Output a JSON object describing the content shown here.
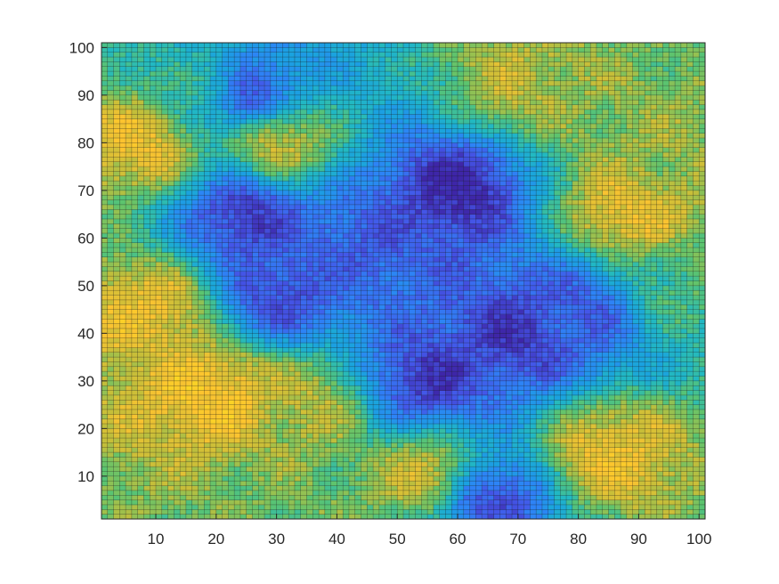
{
  "chart_data": {
    "type": "heatmap",
    "title": "",
    "xlabel": "",
    "ylabel": "",
    "xlim": [
      1,
      101
    ],
    "ylim": [
      1,
      101
    ],
    "grid_size": [
      100,
      100
    ],
    "x_ticks": [
      10,
      20,
      30,
      40,
      50,
      60,
      70,
      80,
      90,
      100
    ],
    "y_ticks": [
      10,
      20,
      30,
      40,
      50,
      60,
      70,
      80,
      90,
      100
    ],
    "colormap": [
      "#3e26a8",
      "#4456e8",
      "#2d84f6",
      "#1aa2e0",
      "#22b9c1",
      "#5cc46f",
      "#c3be3a",
      "#fcc330",
      "#f9e01f"
    ],
    "value_range": [
      0,
      1
    ],
    "grid_lines": true,
    "features": [
      {
        "x": 8,
        "y": 80,
        "v": 0.85
      },
      {
        "x": 30,
        "y": 80,
        "v": 0.8
      },
      {
        "x": 18,
        "y": 92,
        "v": 0.55
      },
      {
        "x": 10,
        "y": 45,
        "v": 0.85
      },
      {
        "x": 20,
        "y": 28,
        "v": 0.9
      },
      {
        "x": 35,
        "y": 25,
        "v": 0.75
      },
      {
        "x": 55,
        "y": 10,
        "v": 0.8
      },
      {
        "x": 88,
        "y": 65,
        "v": 0.85
      },
      {
        "x": 92,
        "y": 78,
        "v": 0.7
      },
      {
        "x": 85,
        "y": 15,
        "v": 0.85
      },
      {
        "x": 97,
        "y": 50,
        "v": 0.6
      },
      {
        "x": 70,
        "y": 92,
        "v": 0.75
      },
      {
        "x": 35,
        "y": 3,
        "v": 0.65
      },
      {
        "x": 25,
        "y": 65,
        "v": 0.05
      },
      {
        "x": 60,
        "y": 70,
        "v": 0.0
      },
      {
        "x": 55,
        "y": 30,
        "v": 0.05
      },
      {
        "x": 30,
        "y": 48,
        "v": 0.1
      },
      {
        "x": 70,
        "y": 40,
        "v": 0.05
      },
      {
        "x": 45,
        "y": 60,
        "v": 0.15
      },
      {
        "x": 25,
        "y": 90,
        "v": 0.1
      },
      {
        "x": 80,
        "y": 45,
        "v": 0.15
      },
      {
        "x": 65,
        "y": 5,
        "v": 0.1
      }
    ]
  }
}
